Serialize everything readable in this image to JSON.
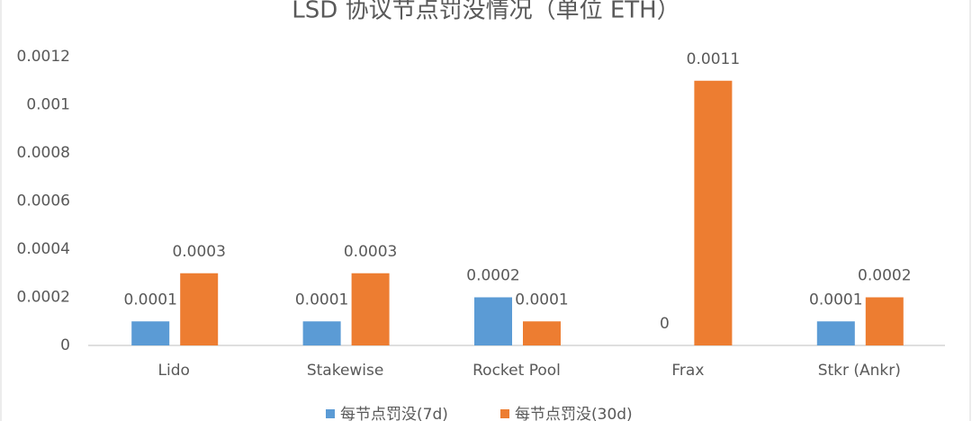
{
  "chart_data": {
    "type": "bar",
    "title": "LSD 协议节点罚没情况（单位 ETH）",
    "categories": [
      "Lido",
      "Stakewise",
      "Rocket Pool",
      "Frax",
      "Stkr (Ankr)"
    ],
    "series": [
      {
        "name": "每节点罚没(7d)",
        "color": "#5b9bd5",
        "values": [
          0.0001,
          0.0001,
          0.0002,
          0,
          0.0001
        ]
      },
      {
        "name": "每节点罚没(30d)",
        "color": "#ed7d31",
        "values": [
          0.0003,
          0.0003,
          0.0001,
          0.0011,
          0.0002
        ]
      }
    ],
    "ylim": [
      0,
      0.0012
    ],
    "yticks": [
      0,
      0.0002,
      0.0004,
      0.0006,
      0.0008,
      0.001,
      0.0012
    ],
    "grid": false,
    "legend": "bottom"
  }
}
